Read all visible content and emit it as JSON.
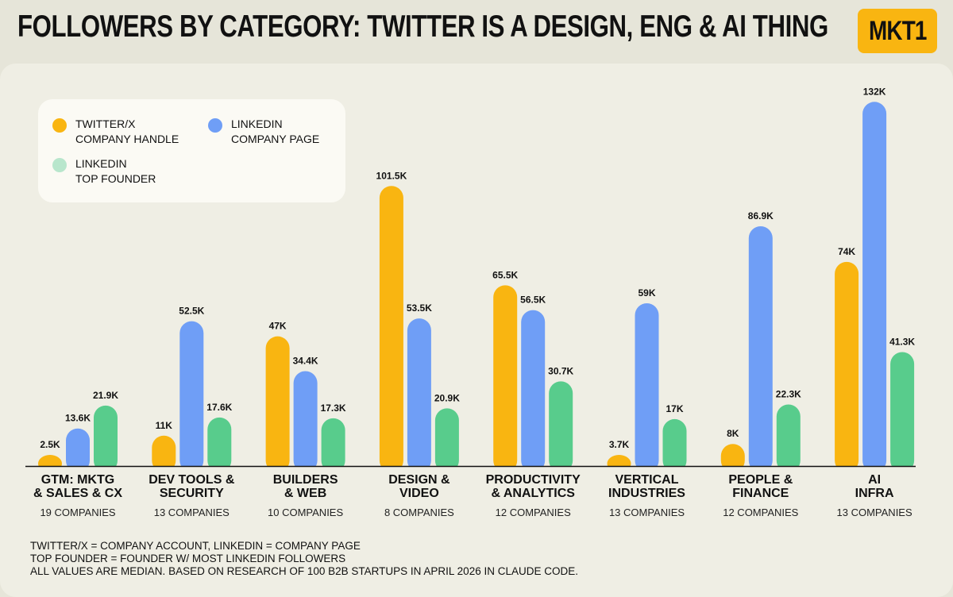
{
  "header": {
    "title": "FOLLOWERS BY CATEGORY: TWITTER IS A DESIGN, ENG & AI THING",
    "logo_text": "MKT1"
  },
  "legend": [
    {
      "label": "TWITTER/X\nCOMPANY HANDLE",
      "color": "#f9b511"
    },
    {
      "label": "LINKEDIN\nCOMPANY PAGE",
      "color": "#6f9ef6"
    },
    {
      "label": "LINKEDIN\nTOP FOUNDER",
      "color": "#b8e6cc"
    }
  ],
  "chart_data": {
    "type": "bar",
    "title": "FOLLOWERS BY CATEGORY: TWITTER IS A DESIGN, ENG & AI THING",
    "xlabel": "",
    "ylabel": "",
    "ylim": [
      0,
      132
    ],
    "categories": [
      "GTM: MKTG\n& SALES & CX",
      "DEV TOOLS &\nSECURITY",
      "BUILDERS\n& WEB",
      "DESIGN &\nVIDEO",
      "PRODUCTIVITY\n& ANALYTICS",
      "VERTICAL\nINDUSTRIES",
      "PEOPLE &\nFINANCE",
      "AI\nINFRA"
    ],
    "company_counts": [
      "19 COMPANIES",
      "13 COMPANIES",
      "10 COMPANIES",
      "8 COMPANIES",
      "12 COMPANIES",
      "13 COMPANIES",
      "12 COMPANIES",
      "13 COMPANIES"
    ],
    "series": [
      {
        "name": "TWITTER/X COMPANY HANDLE",
        "color": "#f9b511",
        "values": [
          2.5,
          11,
          47,
          101.5,
          65.5,
          3.7,
          8,
          74
        ],
        "labels": [
          "2.5K",
          "11K",
          "47K",
          "101.5K",
          "65.5K",
          "3.7K",
          "8K",
          "74K"
        ]
      },
      {
        "name": "LINKEDIN COMPANY PAGE",
        "color": "#6f9ef6",
        "values": [
          13.6,
          52.5,
          34.4,
          53.5,
          56.5,
          59,
          86.9,
          132
        ],
        "labels": [
          "13.6K",
          "52.5K",
          "34.4K",
          "53.5K",
          "56.5K",
          "59K",
          "86.9K",
          "132K"
        ]
      },
      {
        "name": "LINKEDIN TOP FOUNDER",
        "color": "#58cc8c",
        "values": [
          21.9,
          17.6,
          17.3,
          20.9,
          30.7,
          17,
          22.3,
          41.3
        ],
        "labels": [
          "21.9K",
          "17.6K",
          "17.3K",
          "20.9K",
          "30.7K",
          "17K",
          "22.3K",
          "41.3K"
        ]
      }
    ]
  },
  "footnotes": [
    "TWITTER/X = COMPANY ACCOUNT, LINKEDIN = COMPANY PAGE",
    "TOP FOUNDER = FOUNDER W/ MOST LINKEDIN FOLLOWERS",
    "ALL VALUES ARE MEDIAN. BASED ON RESEARCH OF 100 B2B STARTUPS IN APRIL 2026 IN CLAUDE CODE."
  ]
}
